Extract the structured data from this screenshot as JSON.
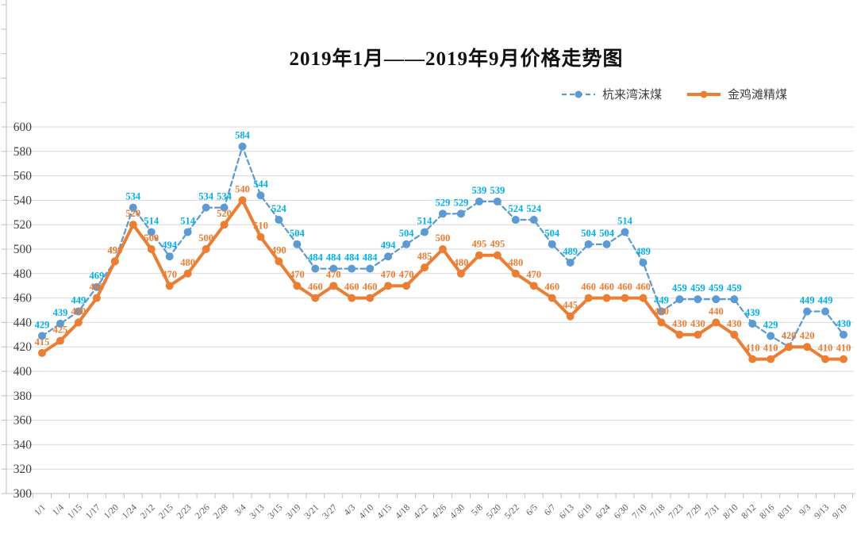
{
  "title": "2019年1月——2019年9月价格走势图",
  "chart_data": {
    "type": "line",
    "title": "2019年1月——2019年9月价格走势图",
    "xlabel": "",
    "ylabel": "",
    "ylim": [
      300,
      600
    ],
    "ytick_step": 20,
    "grid": true,
    "legend_position": "top-right",
    "data_labels": true,
    "categories": [
      "1/1",
      "1/4",
      "1/15",
      "1/17",
      "1/20",
      "1/24",
      "2/12",
      "2/15",
      "2/23",
      "2/26",
      "2/28",
      "3/4",
      "3/13",
      "3/15",
      "3/19",
      "3/21",
      "3/27",
      "4/3",
      "4/10",
      "4/15",
      "4/18",
      "4/22",
      "4/26",
      "4/30",
      "5/8",
      "5/20",
      "5/22",
      "6/5",
      "6/7",
      "6/13",
      "6/19",
      "6/24",
      "6/30",
      "7/10",
      "7/18",
      "7/23",
      "7/29",
      "7/31",
      "8/10",
      "8/12",
      "8/16",
      "8/31",
      "9/3",
      "9/13",
      "9/19"
    ],
    "series": [
      {
        "name": "杭来湾沫煤",
        "line_style": "dashed",
        "color": "#5B9BD5",
        "label_color": "#00B0F0",
        "values": [
          429,
          439,
          449,
          469,
          490,
          534,
          514,
          494,
          514,
          534,
          534,
          584,
          544,
          524,
          504,
          484,
          484,
          484,
          484,
          494,
          504,
          514,
          529,
          529,
          539,
          539,
          524,
          524,
          504,
          489,
          504,
          504,
          514,
          489,
          449,
          459,
          459,
          459,
          459,
          439,
          429,
          420,
          449,
          449,
          430
        ]
      },
      {
        "name": "金鸡滩精煤",
        "line_style": "solid",
        "color": "#ED7D31",
        "label_color": "#ED7D31",
        "values": [
          415,
          425,
          440,
          460,
          490,
          520,
          500,
          470,
          480,
          500,
          520,
          540,
          510,
          490,
          470,
          460,
          470,
          460,
          460,
          470,
          470,
          485,
          500,
          480,
          495,
          495,
          480,
          470,
          460,
          445,
          460,
          460,
          460,
          460,
          440,
          430,
          430,
          440,
          430,
          410,
          410,
          420,
          420,
          410,
          410
        ]
      }
    ],
    "axis_text_color": "#595959",
    "grid_color": "#D9D9D9"
  }
}
